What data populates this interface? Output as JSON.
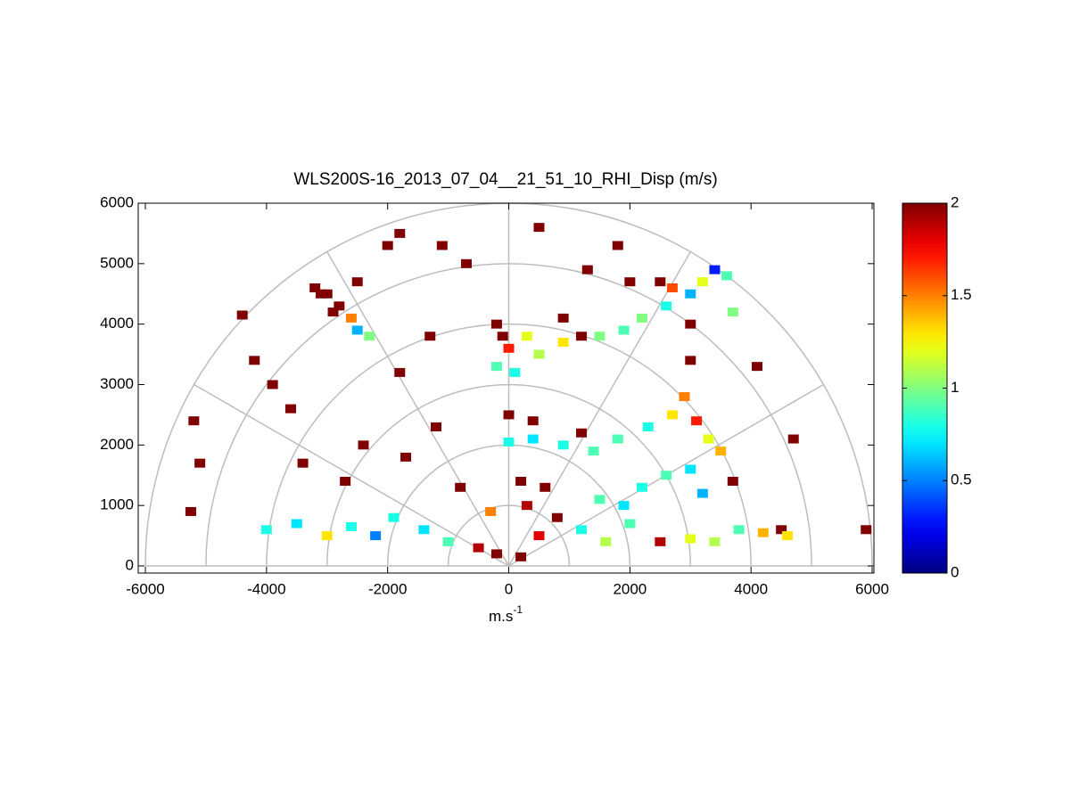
{
  "chart_data": {
    "type": "polar-heatmap",
    "title": "WLS200S-16_2013_07_04__21_51_10_RHI_Disp (m/s)",
    "xlabel": "m.s",
    "xlabel_sup": "-1",
    "xlim": [
      -6118,
      6029
    ],
    "ylim": [
      -118,
      6000
    ],
    "xticks": [
      -6000,
      -4000,
      -2000,
      0,
      2000,
      4000,
      6000
    ],
    "yticks": [
      0,
      1000,
      2000,
      3000,
      4000,
      5000,
      6000
    ],
    "clim": [
      0,
      2
    ],
    "cticks": [
      0,
      0.5,
      1,
      1.5,
      2
    ],
    "colormap": "jet",
    "polar_grid": {
      "radii": [
        1000,
        2000,
        3000,
        4000,
        5000,
        6000
      ],
      "angles": [
        0,
        30,
        60,
        90,
        120,
        150,
        180
      ]
    },
    "x": [
      -5200,
      -5100,
      -5250,
      -4200,
      -4400,
      -3900,
      -3600,
      -3200,
      -3100,
      -2900,
      -2500,
      -2000,
      -1800,
      -1100,
      -700,
      -1300,
      -1800,
      -2400,
      -3400,
      -2700,
      -1700,
      -1200,
      0,
      400,
      1200,
      500,
      1300,
      1800,
      2000,
      2500,
      3000,
      3000,
      4100,
      4700,
      5900,
      4500,
      3700,
      -200,
      -100,
      0,
      300,
      -200,
      100,
      500,
      900,
      1200,
      900,
      1500,
      1900,
      2200,
      2600,
      2700,
      3000,
      3200,
      3400,
      3600,
      3700,
      -2800,
      -2600,
      -2500,
      -2300,
      -3000,
      0,
      400,
      900,
      1400,
      1800,
      2300,
      2700,
      2900,
      3100,
      3300,
      3500,
      3000,
      2600,
      2200,
      3200,
      -4000,
      -3500,
      -3000,
      -2600,
      -2200,
      -1900,
      -1400,
      -1000,
      -500,
      -200,
      200,
      500,
      800,
      300,
      -300,
      1200,
      1600,
      2000,
      2500,
      3000,
      3400,
      3800,
      4200,
      4600,
      1500,
      1900,
      -800,
      200,
      600
    ],
    "y": [
      2400,
      1700,
      900,
      3400,
      4150,
      3000,
      2600,
      4600,
      4500,
      4200,
      4700,
      5300,
      5500,
      5300,
      5000,
      3800,
      3200,
      2000,
      1700,
      1400,
      1800,
      2300,
      2500,
      2400,
      2200,
      5600,
      4900,
      5300,
      4700,
      4700,
      3400,
      4000,
      3300,
      2100,
      600,
      600,
      1400,
      4000,
      3800,
      3600,
      3800,
      3300,
      3200,
      3500,
      3700,
      3800,
      4100,
      3800,
      3900,
      4100,
      4300,
      4600,
      4500,
      4700,
      4900,
      4800,
      4200,
      4300,
      4100,
      3900,
      3800,
      4500,
      2050,
      2100,
      2000,
      1900,
      2100,
      2300,
      2500,
      2800,
      2400,
      2100,
      1900,
      1600,
      1500,
      1300,
      1200,
      600,
      700,
      500,
      650,
      500,
      800,
      600,
      400,
      300,
      200,
      150,
      500,
      800,
      1000,
      900,
      600,
      400,
      700,
      400,
      450,
      400,
      600,
      550,
      500,
      1100,
      1000,
      1300,
      1400,
      1300
    ],
    "values": [
      2,
      2,
      2,
      2,
      2,
      2,
      2,
      2,
      2,
      2,
      2,
      2,
      2,
      2,
      2,
      2,
      2,
      2,
      2,
      2,
      2,
      2,
      2,
      2,
      2,
      2,
      2,
      2,
      2,
      2,
      2,
      2,
      2,
      2,
      2,
      2,
      2,
      2,
      2,
      1.7,
      1.2,
      0.9,
      0.8,
      1.1,
      1.3,
      2,
      2,
      1,
      0.9,
      1,
      0.8,
      1.6,
      0.6,
      1.2,
      0.3,
      0.9,
      1,
      2,
      1.5,
      0.6,
      1,
      2,
      0.8,
      0.7,
      0.8,
      0.9,
      0.9,
      0.8,
      1.3,
      1.5,
      1.7,
      1.2,
      1.4,
      0.7,
      0.9,
      0.8,
      0.6,
      0.8,
      0.7,
      1.3,
      0.8,
      0.5,
      0.8,
      0.7,
      0.9,
      1.9,
      2,
      2,
      1.8,
      2,
      1.9,
      1.5,
      0.8,
      1.1,
      0.9,
      1.9,
      1.2,
      1.1,
      0.9,
      1.4,
      1.3,
      0.9,
      0.7,
      2,
      2,
      2
    ]
  }
}
